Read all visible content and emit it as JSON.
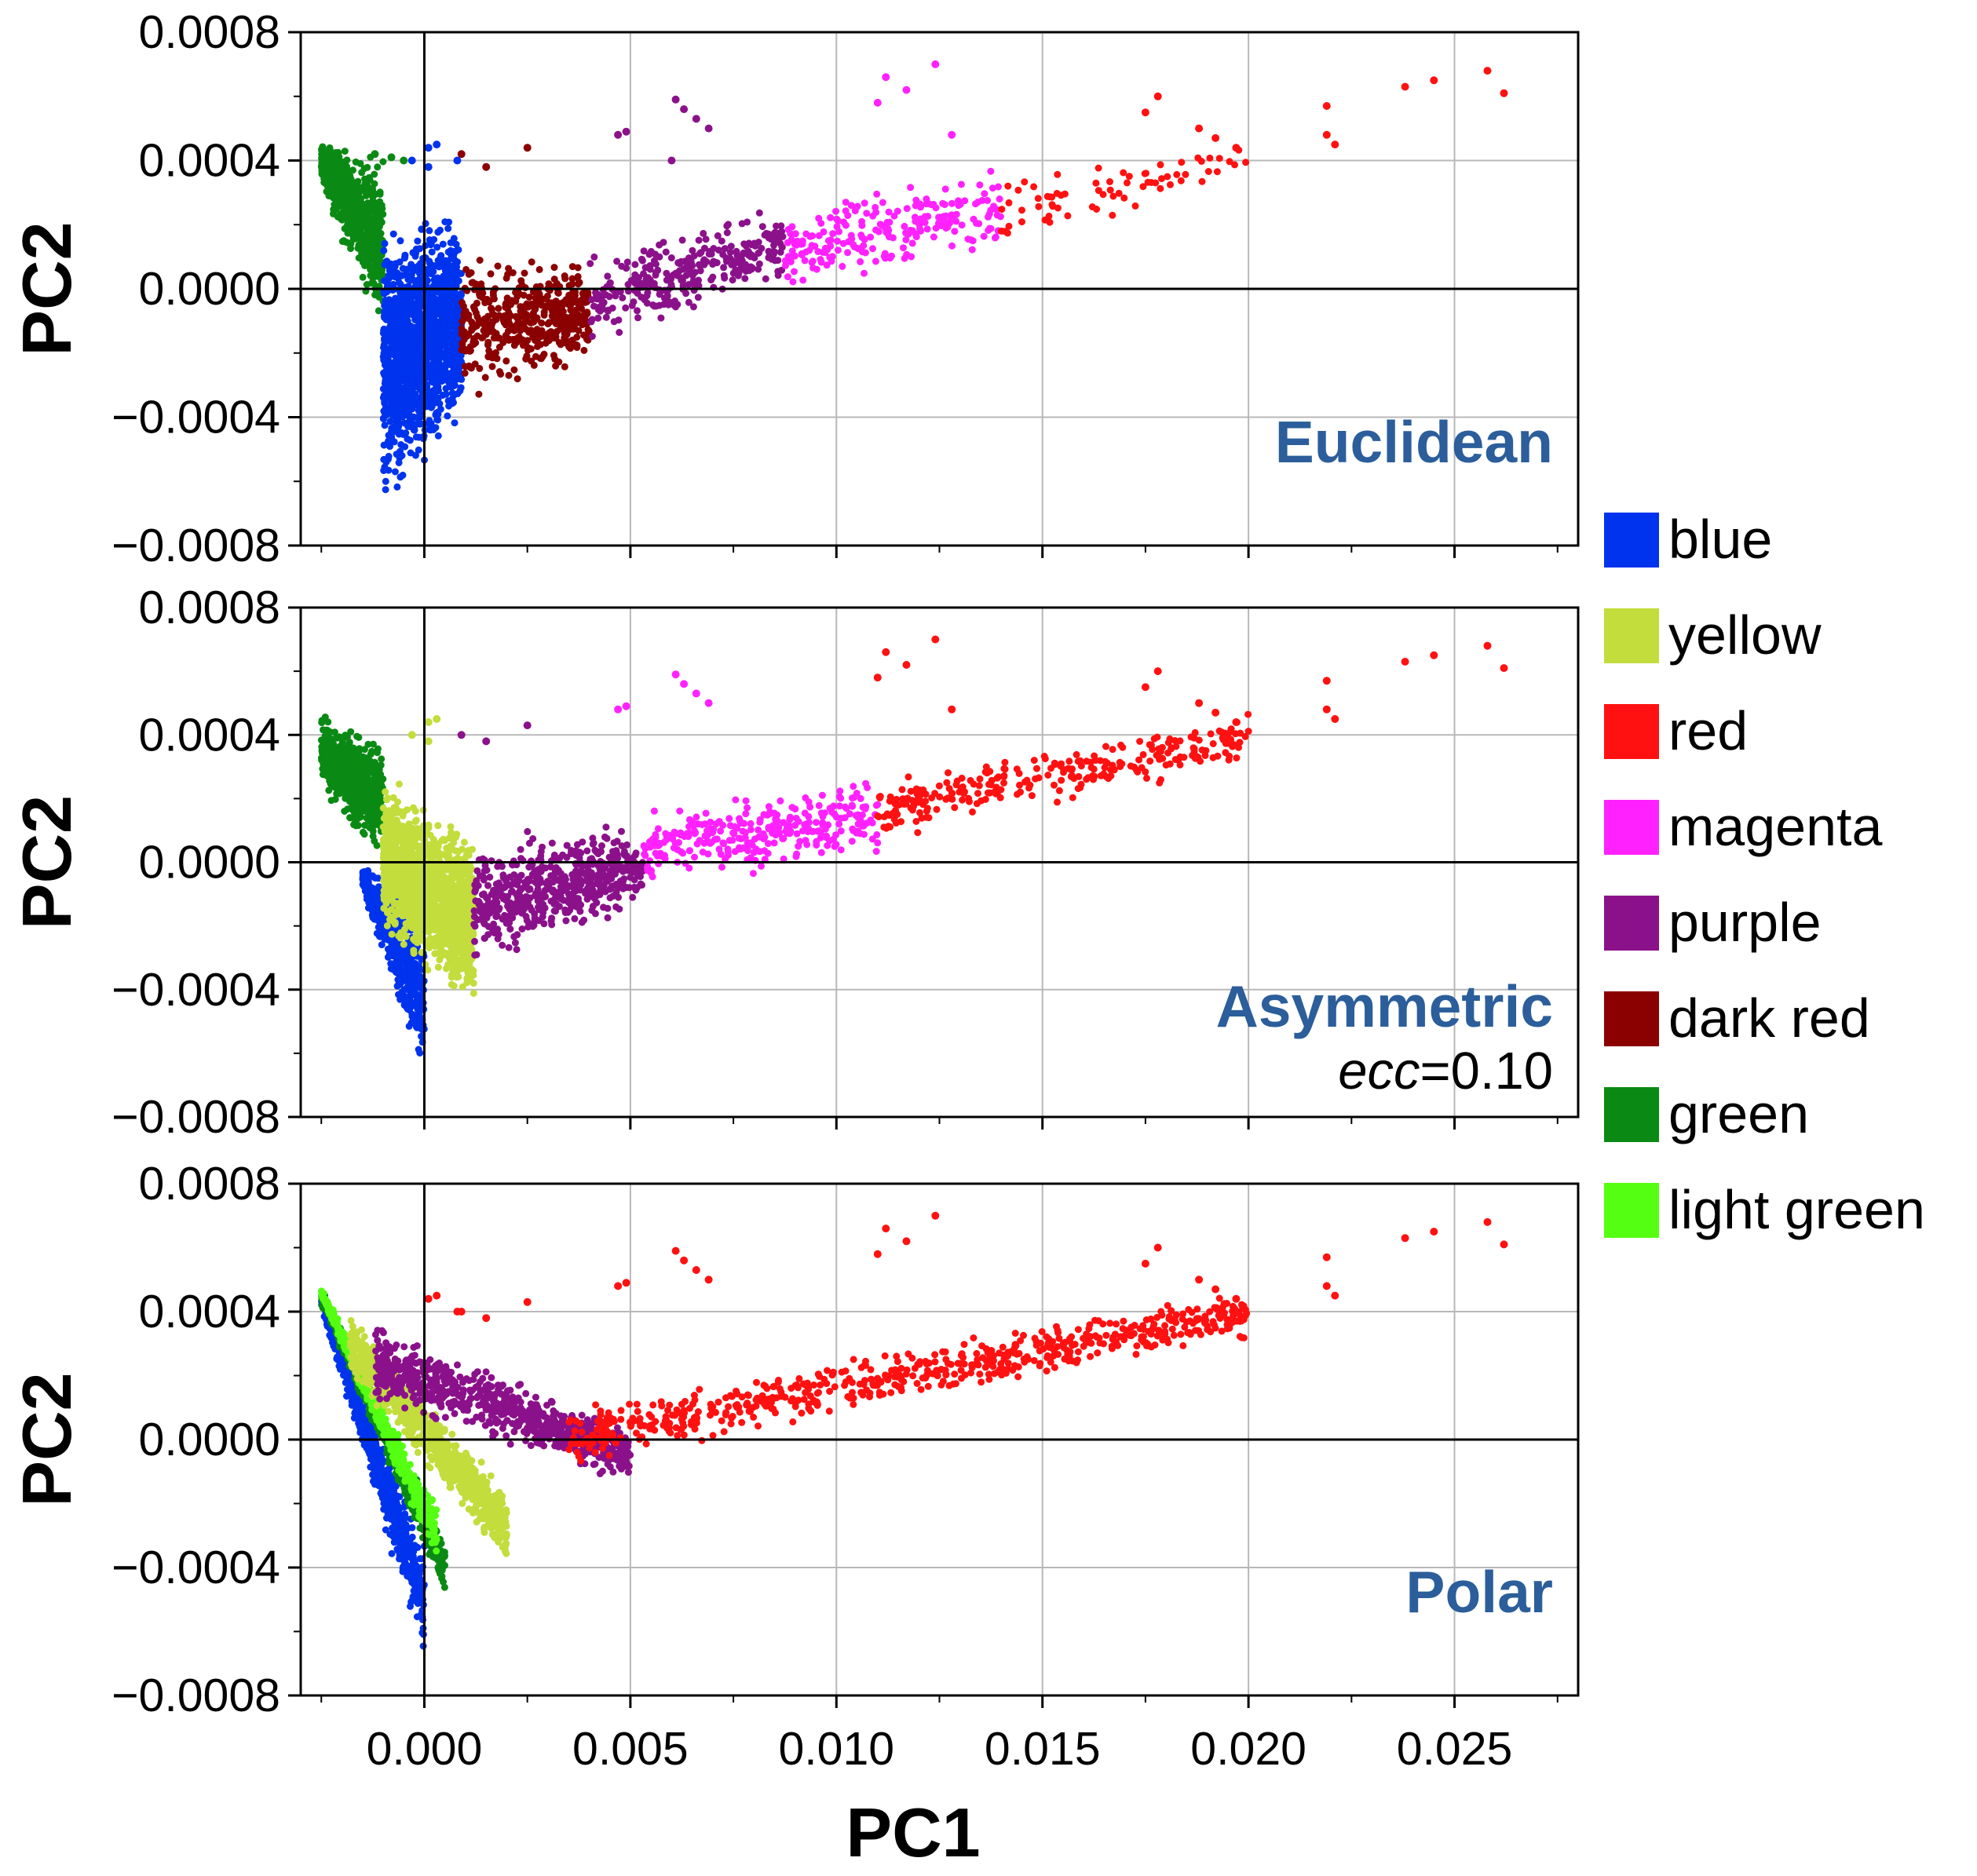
{
  "chart_data": {
    "type": "scatter",
    "xlabel": "PC1",
    "xlim": [
      -0.003,
      0.028
    ],
    "x_ticks": [
      "0.000",
      "0.005",
      "0.010",
      "0.015",
      "0.020",
      "0.025"
    ],
    "x_tick_values": [
      0,
      0.005,
      0.01,
      0.015,
      0.02,
      0.025
    ],
    "y_ticks": [
      "0.0008",
      "0.0004",
      "0.0000",
      "−0.0004",
      "−0.0008"
    ],
    "y_tick_values": [
      0.0008,
      0.0004,
      0,
      -0.0004,
      -0.0008
    ],
    "grid": true,
    "legend_position": "right",
    "legend": [
      {
        "label": "blue",
        "color": "#0033ee"
      },
      {
        "label": "yellow",
        "color": "#c2dd3c"
      },
      {
        "label": "red",
        "color": "#ff1111"
      },
      {
        "label": "magenta",
        "color": "#ff22ff"
      },
      {
        "label": "purple",
        "color": "#8b118b"
      },
      {
        "label": "dark red",
        "color": "#8b0000"
      },
      {
        "label": "green",
        "color": "#0a8a14"
      },
      {
        "label": "light green",
        "color": "#55ff11"
      }
    ],
    "panels": [
      {
        "label": "Euclidean",
        "subtitle": "",
        "ylabel": "PC2",
        "ylim": [
          -0.0008,
          0.0008
        ],
        "groups": [
          {
            "name": "green",
            "color": "#0a8a14",
            "kind": "band",
            "x_range": [
              -0.0025,
              -0.001
            ],
            "y_top": [
              0.00048,
              0.00044
            ],
            "y_bottom": [
              0.0003,
              -0.00018
            ],
            "count": 700
          },
          {
            "name": "blue",
            "color": "#0033ee",
            "kind": "band",
            "x_range": [
              -0.001,
              0.0009
            ],
            "y_top": [
              0.00025,
              0.00025
            ],
            "y_bottom": [
              -0.00072,
              -0.00045
            ],
            "count": 1500
          },
          {
            "name": "dark red",
            "color": "#8b0000",
            "kind": "band",
            "x_range": [
              0.0009,
              0.004
            ],
            "y_top": [
              0.00015,
              0.0001
            ],
            "y_bottom": [
              -0.00038,
              -0.00025
            ],
            "count": 450
          },
          {
            "name": "purple",
            "color": "#8b118b",
            "kind": "band",
            "x_range": [
              0.004,
              0.0087
            ],
            "y_top": [
              0.00012,
              0.00028
            ],
            "y_bottom": [
              -0.00018,
              0.0
            ],
            "count": 300
          },
          {
            "name": "magenta",
            "color": "#ff22ff",
            "kind": "band",
            "x_range": [
              0.0087,
              0.014
            ],
            "y_top": [
              0.00026,
              0.0004
            ],
            "y_bottom": [
              -2e-05,
              0.0001
            ],
            "count": 230
          },
          {
            "name": "red",
            "color": "#ff1111",
            "kind": "band",
            "x_range": [
              0.014,
              0.02
            ],
            "y_top": [
              0.00038,
              0.00048
            ],
            "y_bottom": [
              0.0001,
              0.00035
            ],
            "count": 70
          }
        ],
        "points": [
          {
            "color": "#ff1111",
            "xy": [
              [
                0.0238,
                0.00063
              ],
              [
                0.0245,
                0.00065
              ],
              [
                0.0258,
                0.00068
              ],
              [
                0.0262,
                0.00061
              ],
              [
                0.0219,
                0.00057
              ],
              [
                0.0219,
                0.00048
              ],
              [
                0.0221,
                0.00045
              ],
              [
                0.0178,
                0.0006
              ],
              [
                0.0175,
                0.00055
              ],
              [
                0.0188,
                0.0005
              ],
              [
                0.0192,
                0.00047
              ],
              [
                0.0197,
                0.00044
              ]
            ]
          },
          {
            "color": "#ff22ff",
            "xy": [
              [
                0.0112,
                0.00066
              ],
              [
                0.0117,
                0.00062
              ],
              [
                0.0124,
                0.0007
              ],
              [
                0.011,
                0.00058
              ],
              [
                0.0128,
                0.00048
              ]
            ]
          },
          {
            "color": "#8b118b",
            "xy": [
              [
                0.0061,
                0.00059
              ],
              [
                0.0063,
                0.00056
              ],
              [
                0.0066,
                0.00053
              ],
              [
                0.0069,
                0.0005
              ],
              [
                0.0049,
                0.00049
              ],
              [
                0.0047,
                0.00048
              ],
              [
                0.006,
                0.0004
              ]
            ]
          },
          {
            "color": "#8b0000",
            "xy": [
              [
                0.0015,
                0.00038
              ],
              [
                0.0025,
                0.00044
              ],
              [
                0.0009,
                0.00042
              ]
            ]
          },
          {
            "color": "#0033ee",
            "xy": [
              [
                0.0001,
                0.00044
              ],
              [
                0.0003,
                0.00045
              ],
              [
                0.0008,
                0.0004
              ],
              [
                -0.0003,
                0.0004
              ],
              [
                0.0001,
                0.00038
              ]
            ]
          },
          {
            "color": "#0a8a14",
            "xy": [
              [
                -0.0012,
                0.00042
              ],
              [
                -0.0008,
                0.00041
              ],
              [
                -0.0005,
                0.0004
              ]
            ]
          }
        ]
      },
      {
        "label": "Asymmetric",
        "subtitle": "ecc=0.10",
        "ylabel": "PC2",
        "ylim": [
          -0.0008,
          0.0008
        ],
        "groups": [
          {
            "name": "green",
            "color": "#0a8a14",
            "kind": "band",
            "x_range": [
              -0.0025,
              -0.001
            ],
            "y_top": [
              0.00048,
              0.0004
            ],
            "y_bottom": [
              0.0002,
              -2e-05
            ],
            "count": 650
          },
          {
            "name": "blue",
            "color": "#0033ee",
            "kind": "band",
            "x_range": [
              -0.0015,
              0.0
            ],
            "y_top": [
              0.0,
              -0.00015
            ],
            "y_bottom": [
              -0.0001,
              -0.00072
            ],
            "count": 550
          },
          {
            "name": "yellow",
            "color": "#c2dd3c",
            "kind": "band",
            "x_range": [
              -0.001,
              0.0012
            ],
            "y_top": [
              0.0003,
              0.0001
            ],
            "y_bottom": [
              -0.00025,
              -0.0005
            ],
            "count": 1400
          },
          {
            "name": "purple",
            "color": "#8b118b",
            "kind": "band",
            "x_range": [
              0.0012,
              0.0053
            ],
            "y_top": [
              0.00012,
              0.00012
            ],
            "y_bottom": [
              -0.00038,
              -0.00015
            ],
            "count": 550
          },
          {
            "name": "magenta",
            "color": "#ff22ff",
            "kind": "band",
            "x_range": [
              0.0053,
              0.011
            ],
            "y_top": [
              0.00018,
              0.0003
            ],
            "y_bottom": [
              -8e-05,
              0.0
            ],
            "count": 300
          },
          {
            "name": "red",
            "color": "#ff1111",
            "kind": "band",
            "x_range": [
              0.011,
              0.02
            ],
            "y_top": [
              0.00028,
              0.00048
            ],
            "y_bottom": [
              5e-05,
              0.0003
            ],
            "count": 280
          }
        ],
        "points": [
          {
            "color": "#ff1111",
            "xy": [
              [
                0.0238,
                0.00063
              ],
              [
                0.0245,
                0.00065
              ],
              [
                0.0258,
                0.00068
              ],
              [
                0.0262,
                0.00061
              ],
              [
                0.0219,
                0.00057
              ],
              [
                0.0219,
                0.00048
              ],
              [
                0.0221,
                0.00045
              ],
              [
                0.0178,
                0.0006
              ],
              [
                0.0175,
                0.00055
              ],
              [
                0.0188,
                0.0005
              ],
              [
                0.0192,
                0.00047
              ],
              [
                0.0197,
                0.00044
              ],
              [
                0.0112,
                0.00066
              ],
              [
                0.0117,
                0.00062
              ],
              [
                0.0124,
                0.0007
              ],
              [
                0.011,
                0.00058
              ],
              [
                0.0128,
                0.00048
              ]
            ]
          },
          {
            "color": "#ff22ff",
            "xy": [
              [
                0.0061,
                0.00059
              ],
              [
                0.0063,
                0.00056
              ],
              [
                0.0066,
                0.00053
              ],
              [
                0.0069,
                0.0005
              ],
              [
                0.0049,
                0.00049
              ],
              [
                0.0047,
                0.00048
              ]
            ]
          },
          {
            "color": "#8b118b",
            "xy": [
              [
                0.0025,
                0.00043
              ],
              [
                0.0015,
                0.00038
              ],
              [
                0.0009,
                0.0004
              ]
            ]
          },
          {
            "color": "#c2dd3c",
            "xy": [
              [
                0.0001,
                0.00044
              ],
              [
                0.0003,
                0.00045
              ],
              [
                -0.0003,
                0.0004
              ],
              [
                0.0001,
                0.00038
              ]
            ]
          }
        ]
      },
      {
        "label": "Polar",
        "subtitle": "",
        "ylabel": "PC2",
        "ylim": [
          -0.0008,
          0.0008
        ],
        "groups": [
          {
            "name": "blue",
            "color": "#0033ee",
            "kind": "band",
            "x_range": [
              -0.0025,
              0.0
            ],
            "y_top": [
              0.00048,
              -0.0003
            ],
            "y_bottom": [
              0.0004,
              -0.00072
            ],
            "count": 700
          },
          {
            "name": "green",
            "color": "#0a8a14",
            "kind": "band",
            "x_range": [
              -0.0025,
              0.0005
            ],
            "y_top": [
              0.00048,
              -0.0003
            ],
            "y_bottom": [
              0.00042,
              -0.0005
            ],
            "count": 700
          },
          {
            "name": "light green",
            "color": "#55ff11",
            "kind": "band",
            "x_range": [
              -0.0025,
              0.0003
            ],
            "y_top": [
              0.00048,
              -0.0002
            ],
            "y_bottom": [
              0.00044,
              -0.0004
            ],
            "count": 500
          },
          {
            "name": "yellow",
            "color": "#c2dd3c",
            "kind": "band",
            "x_range": [
              -0.0018,
              0.002
            ],
            "y_top": [
              0.0004,
              -0.00015
            ],
            "y_bottom": [
              0.0002,
              -0.0004
            ],
            "count": 900
          },
          {
            "name": "purple",
            "color": "#8b118b",
            "kind": "band",
            "x_range": [
              -0.0012,
              0.005
            ],
            "y_top": [
              0.00038,
              5e-05
            ],
            "y_bottom": [
              0.0001,
              -0.00015
            ],
            "count": 750
          },
          {
            "name": "red",
            "color": "#ff1111",
            "kind": "band",
            "x_range": [
              0.0035,
              0.02
            ],
            "y_top": [
              0.00012,
              0.00048
            ],
            "y_bottom": [
              -0.0001,
              0.0003
            ],
            "count": 650
          }
        ],
        "points": [
          {
            "color": "#ff1111",
            "xy": [
              [
                0.0238,
                0.00063
              ],
              [
                0.0245,
                0.00065
              ],
              [
                0.0258,
                0.00068
              ],
              [
                0.0262,
                0.00061
              ],
              [
                0.0219,
                0.00057
              ],
              [
                0.0219,
                0.00048
              ],
              [
                0.0221,
                0.00045
              ],
              [
                0.0178,
                0.0006
              ],
              [
                0.0175,
                0.00055
              ],
              [
                0.0188,
                0.0005
              ],
              [
                0.0192,
                0.00047
              ],
              [
                0.0197,
                0.00044
              ],
              [
                0.0112,
                0.00066
              ],
              [
                0.0117,
                0.00062
              ],
              [
                0.0124,
                0.0007
              ],
              [
                0.011,
                0.00058
              ],
              [
                0.0061,
                0.00059
              ],
              [
                0.0063,
                0.00056
              ],
              [
                0.0066,
                0.00053
              ],
              [
                0.0069,
                0.0005
              ],
              [
                0.0049,
                0.00049
              ],
              [
                0.0047,
                0.00048
              ],
              [
                0.0025,
                0.00043
              ],
              [
                0.0015,
                0.00038
              ],
              [
                0.0009,
                0.0004
              ],
              [
                0.0001,
                0.00044
              ],
              [
                0.0003,
                0.00045
              ],
              [
                0.0008,
                0.0004
              ]
            ]
          }
        ]
      }
    ]
  }
}
